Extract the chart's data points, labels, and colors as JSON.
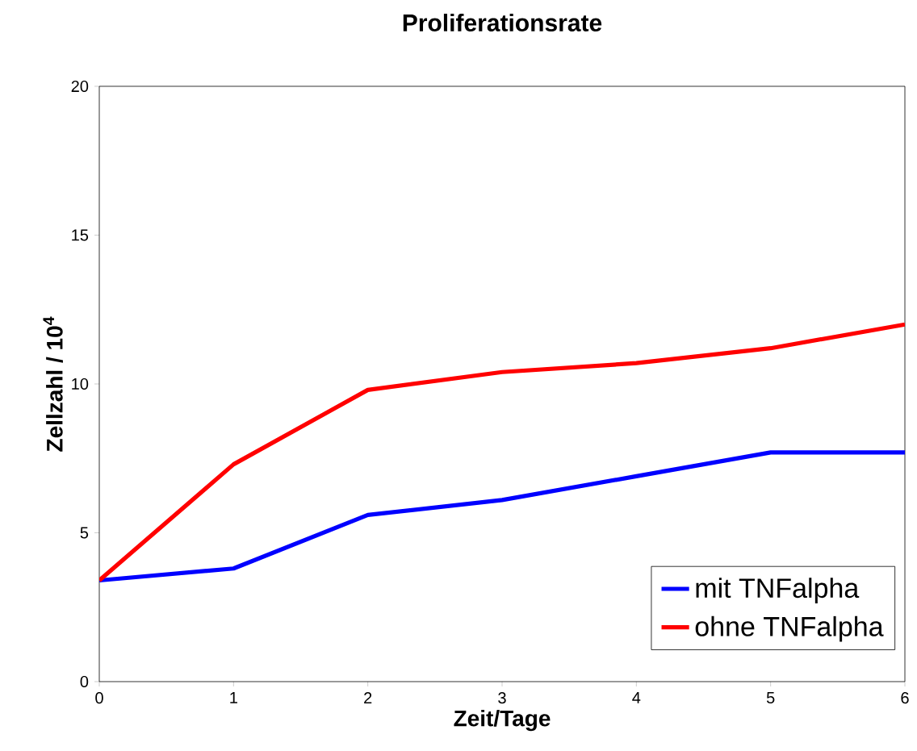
{
  "chart_data": {
    "type": "line",
    "title": "Proliferationsrate",
    "xlabel": "Zeit/Tage",
    "ylabel": "Zellzahl / 10$^{4}$",
    "x": [
      0,
      1,
      2,
      3,
      4,
      5,
      6
    ],
    "series": [
      {
        "name": "mit TNFalpha",
        "color": "#0000ff",
        "values": [
          3.4,
          3.8,
          5.6,
          6.1,
          6.9,
          7.7,
          7.7
        ]
      },
      {
        "name": "ohne TNFalpha",
        "color": "#ff0000",
        "values": [
          3.4,
          7.3,
          9.8,
          10.4,
          10.7,
          11.2,
          12.0
        ]
      }
    ],
    "xlim": [
      0,
      6
    ],
    "xticks": [
      0,
      1,
      2,
      3,
      4,
      5,
      6
    ],
    "ylim": [
      0,
      20
    ],
    "yticks": [
      0,
      5,
      10,
      15,
      20
    ],
    "grid": false,
    "legend": "bottom right",
    "marker": "none",
    "line_style": "solid"
  }
}
